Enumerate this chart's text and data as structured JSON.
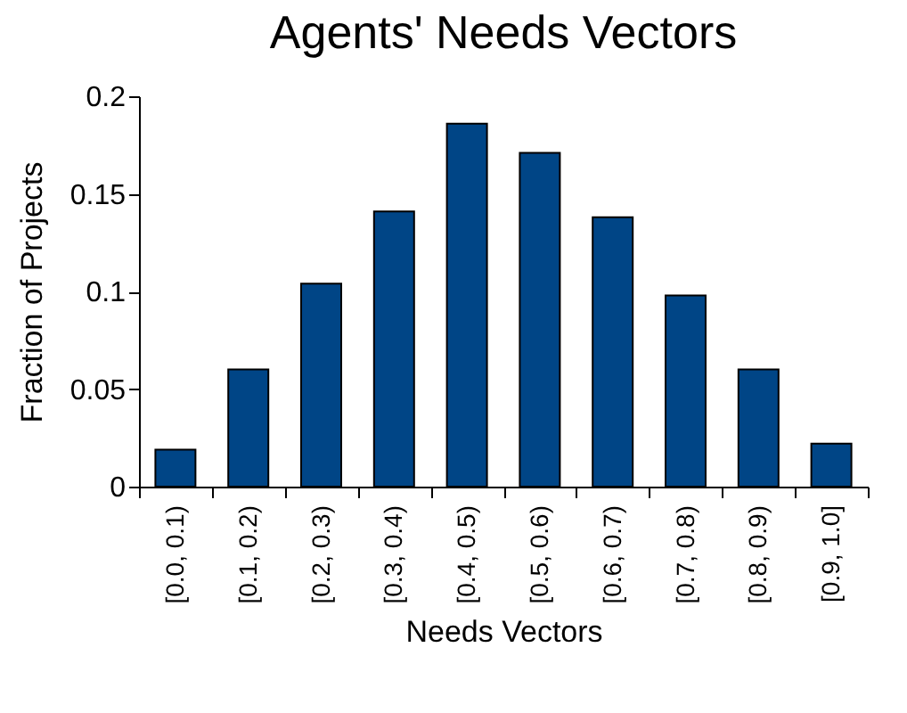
{
  "chart_data": {
    "type": "bar",
    "title": "Agents' Needs Vectors",
    "xlabel": "Needs Vectors",
    "ylabel": "Fraction of Projects",
    "categories": [
      "[0.0, 0.1)",
      "[0.1, 0.2)",
      "[0.2, 0.3)",
      "[0.3, 0.4)",
      "[0.4, 0.5)",
      "[0.5, 0.6)",
      "[0.6, 0.7)",
      "[0.7, 0.8)",
      "[0.8, 0.9)",
      "[0.9, 1.0]"
    ],
    "values": [
      0.019,
      0.06,
      0.104,
      0.141,
      0.186,
      0.171,
      0.138,
      0.098,
      0.06,
      0.022
    ],
    "color": "#004586",
    "ylim": [
      0,
      0.2
    ],
    "yticks": [
      0,
      0.05,
      0.1,
      0.15,
      0.2
    ],
    "grid": false
  }
}
